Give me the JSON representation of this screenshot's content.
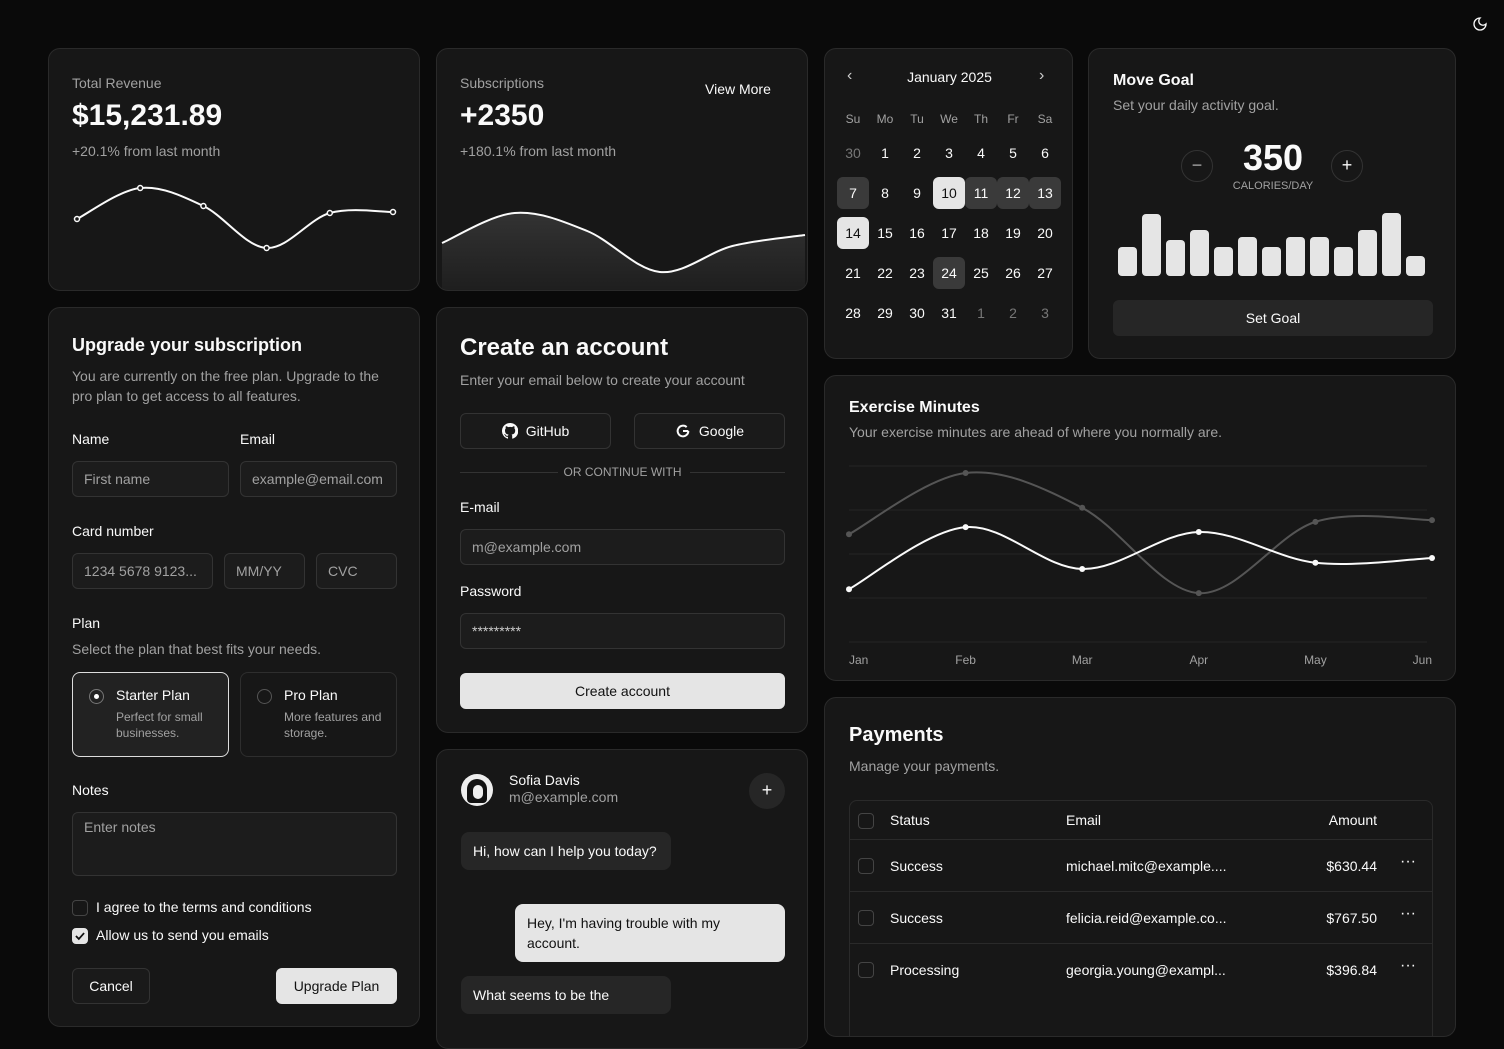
{
  "theme_toggle": {
    "icon": "moon-icon"
  },
  "revenue": {
    "label": "Total Revenue",
    "value": "$15,231.89",
    "change": "+20.1% from last month",
    "sparkline": [
      82,
      113,
      95,
      53,
      88,
      89
    ]
  },
  "subscriptions": {
    "label": "Subscriptions",
    "value": "+2350",
    "change": "+180.1% from last month",
    "view_more": "View More",
    "area": [
      48,
      78,
      60,
      19,
      45,
      56
    ]
  },
  "calendar": {
    "month": "January 2025",
    "weekdays": [
      "Su",
      "Mo",
      "Tu",
      "We",
      "Th",
      "Fr",
      "Sa"
    ],
    "days": [
      "30",
      "1",
      "2",
      "3",
      "4",
      "5",
      "6",
      "7",
      "8",
      "9",
      "10",
      "11",
      "12",
      "13",
      "14",
      "15",
      "16",
      "17",
      "18",
      "19",
      "20",
      "21",
      "22",
      "23",
      "24",
      "25",
      "26",
      "27",
      "28",
      "29",
      "30",
      "31",
      "1",
      "2",
      "3"
    ],
    "outside": [
      0,
      32,
      33,
      34
    ],
    "range_ends": [
      10,
      14
    ],
    "range_middle": [
      11,
      12,
      13,
      7
    ],
    "today": 24
  },
  "move_goal": {
    "title": "Move Goal",
    "subtitle": "Set your daily activity goal.",
    "value": "350",
    "unit": "CALORIES/DAY",
    "set_goal": "Set Goal",
    "bars": [
      200,
      430,
      250,
      320,
      200,
      270,
      200,
      270,
      270,
      200,
      320,
      440,
      140
    ]
  },
  "upgrade": {
    "title": "Upgrade your subscription",
    "description": "You are currently on the free plan. Upgrade to the pro plan to get access to all features.",
    "name_label": "Name",
    "name_placeholder": "First name",
    "email_label": "Email",
    "email_placeholder": "example@email.com",
    "card_label": "Card number",
    "card_placeholder": "1234 5678 9123...",
    "expiry_placeholder": "MM/YY",
    "cvc_placeholder": "CVC",
    "plan_label": "Plan",
    "plan_desc": "Select the plan that best fits your needs.",
    "plans": [
      {
        "name": "Starter Plan",
        "desc": "Perfect for small businesses.",
        "selected": true
      },
      {
        "name": "Pro Plan",
        "desc": "More features and storage.",
        "selected": false
      }
    ],
    "notes_label": "Notes",
    "notes_placeholder": "Enter notes",
    "terms": "I agree to the terms and conditions",
    "emails": "Allow us to send you emails",
    "terms_checked": false,
    "emails_checked": true,
    "cancel": "Cancel",
    "submit": "Upgrade Plan"
  },
  "account": {
    "title": "Create an account",
    "subtitle": "Enter your email below to create your account",
    "github": "GitHub",
    "google": "Google",
    "divider": "OR CONTINUE WITH",
    "email_label": "E-mail",
    "email_placeholder": "m@example.com",
    "password_label": "Password",
    "password_value": "*********",
    "submit": "Create account"
  },
  "chat": {
    "name": "Sofia Davis",
    "email": "m@example.com",
    "messages": [
      {
        "from": "agent",
        "text": "Hi, how can I help you today?"
      },
      {
        "from": "user",
        "text": "Hey, I'm having trouble with my account."
      },
      {
        "from": "agent",
        "text": "What seems to be the"
      }
    ]
  },
  "chart_data": {
    "type": "line",
    "title": "Exercise Minutes",
    "subtitle": "Your exercise minutes are ahead of where you normally are.",
    "categories": [
      "Jan",
      "Feb",
      "Mar",
      "Apr",
      "May",
      "Jun"
    ],
    "series": [
      {
        "values": [
          120,
          261,
          166,
          250,
          180,
          191
        ],
        "color": "#fafafa"
      },
      {
        "values": [
          245,
          384,
          305,
          111,
          273,
          277
        ],
        "color": "#555555"
      }
    ],
    "ylim": [
      0,
      400
    ],
    "grid": true
  },
  "payments": {
    "title": "Payments",
    "subtitle": "Manage your payments.",
    "columns": [
      "Status",
      "Email",
      "Amount"
    ],
    "rows": [
      {
        "status": "Success",
        "email": "michael.mitc@example....",
        "amount": "$630.44"
      },
      {
        "status": "Success",
        "email": "felicia.reid@example.co...",
        "amount": "$767.50"
      },
      {
        "status": "Processing",
        "email": "georgia.young@exampl...",
        "amount": "$396.84"
      }
    ]
  }
}
